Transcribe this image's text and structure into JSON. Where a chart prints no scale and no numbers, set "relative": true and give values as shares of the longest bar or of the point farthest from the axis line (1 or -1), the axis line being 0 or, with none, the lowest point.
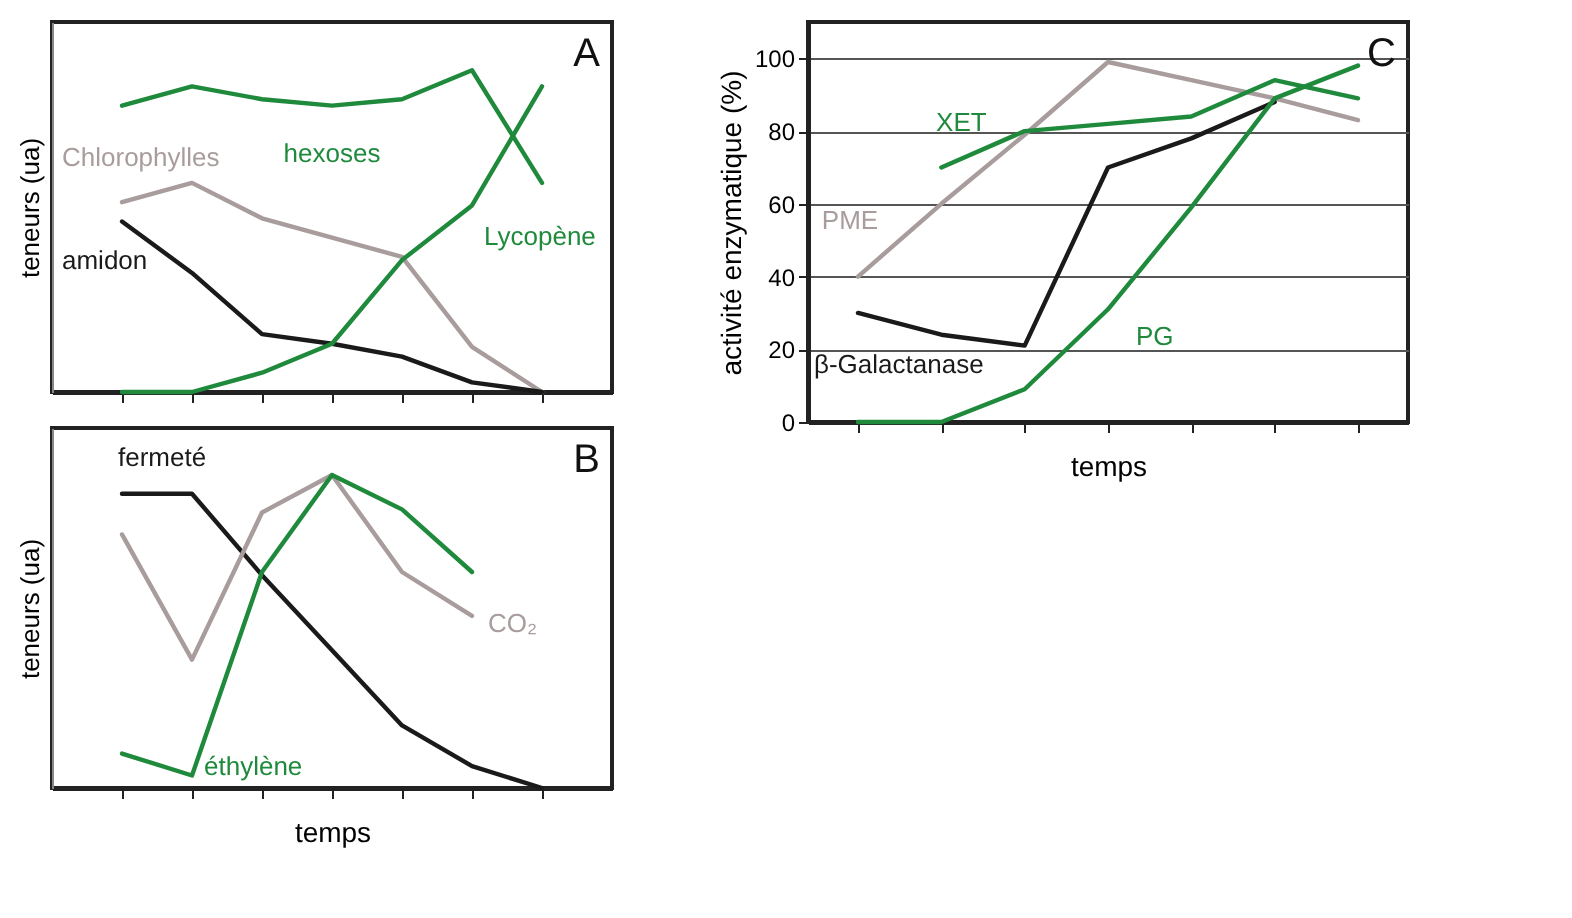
{
  "chart_data": [
    {
      "type": "line",
      "relative": true,
      "ylabel": "teneurs (ua)",
      "tick_labels": false,
      "annotations": [
        "A"
      ],
      "categories": [
        null,
        null,
        null,
        null,
        null,
        null,
        null
      ],
      "series": [
        {
          "name": "hexoses",
          "color": "#1f8a3c",
          "values": [
            0.89,
            0.95,
            0.91,
            0.89,
            0.91,
            1.0,
            0.65
          ]
        },
        {
          "name": "Chlorophylles",
          "color": "#a89c9c",
          "values": [
            0.59,
            0.65,
            0.54,
            0.48,
            0.42,
            0.14,
            0
          ]
        },
        {
          "name": "amidon",
          "color": "#1a1a1a",
          "values": [
            0.53,
            0.37,
            0.18,
            0.15,
            0.11,
            0.03,
            0
          ]
        },
        {
          "name": "Lycopène",
          "color": "#1f8a3c",
          "values": [
            0,
            0,
            0.06,
            0.15,
            0.41,
            0.58,
            0.95
          ]
        }
      ]
    },
    {
      "type": "line",
      "relative": true,
      "ylabel": "teneurs (ua)",
      "xlabel": "temps",
      "tick_labels": false,
      "annotations": [
        "B"
      ],
      "categories": [
        null,
        null,
        null,
        null,
        null,
        null,
        null
      ],
      "series": [
        {
          "name": "fermeté",
          "color": "#1a1a1a",
          "values": [
            0.94,
            0.94,
            0.68,
            0.44,
            0.2,
            0.07,
            0
          ]
        },
        {
          "name": "CO₂",
          "color": "#a89c9c",
          "values": [
            0.81,
            0.41,
            0.88,
            1.0,
            0.69,
            0.55,
            null
          ]
        },
        {
          "name": "éthylène",
          "color": "#1f8a3c",
          "values": [
            0.11,
            0.04,
            0.69,
            1.0,
            0.89,
            0.69,
            null
          ]
        }
      ]
    },
    {
      "type": "line",
      "ylabel": "activité enzymatique (%)",
      "xlabel": "temps",
      "tick_labels": "y",
      "grid": "y",
      "annotations": [
        "C"
      ],
      "ylim": [
        0,
        110
      ],
      "yticks": [
        0,
        20,
        40,
        60,
        80,
        100
      ],
      "categories": [
        null,
        null,
        null,
        null,
        null,
        null,
        null
      ],
      "series": [
        {
          "name": "PME",
          "color": "#a89c9c",
          "values": [
            40,
            60,
            79,
            99,
            94,
            89,
            83
          ]
        },
        {
          "name": "XET",
          "color": "#1f8a3c",
          "values": [
            null,
            70,
            80,
            82,
            84,
            94,
            89
          ]
        },
        {
          "name": "β-Galactanase",
          "color": "#1a1a1a",
          "values": [
            30,
            24,
            21,
            70,
            78,
            88,
            null
          ]
        },
        {
          "name": "PG",
          "color": "#1f8a3c",
          "values": [
            0,
            0,
            9,
            31,
            59,
            89,
            98
          ]
        }
      ]
    }
  ]
}
